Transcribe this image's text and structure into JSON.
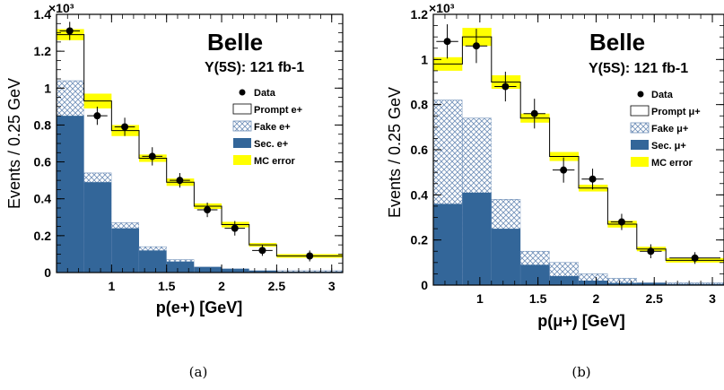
{
  "chart_data": [
    {
      "type": "bar",
      "panel_label": "(a)",
      "title": "Belle",
      "subtitle": "Υ(5S): 121 fb-1",
      "xlabel": "p(e+) [GeV]",
      "ylabel": "Events / 0.25 GeV",
      "exponent_label": "×10³",
      "xlim": [
        0.5,
        3.1
      ],
      "ylim": [
        0,
        1.4
      ],
      "x_ticks": [
        "1",
        "1.5",
        "2",
        "2.5",
        "3"
      ],
      "y_ticks": [
        "0",
        "0.2",
        "0.4",
        "0.6",
        "0.8",
        "1",
        "1.2",
        "1.4"
      ],
      "bin_edges": [
        0.5,
        0.75,
        1.0,
        1.25,
        1.5,
        1.75,
        2.0,
        2.25,
        2.5,
        3.1
      ],
      "series": [
        {
          "name": "Data",
          "x": [
            0.62,
            0.87,
            1.12,
            1.37,
            1.62,
            1.87,
            2.12,
            2.37,
            2.8
          ],
          "values": [
            1.31,
            0.85,
            0.79,
            0.63,
            0.5,
            0.34,
            0.24,
            0.12,
            0.09
          ],
          "errors": [
            0.03,
            0.03,
            0.03,
            0.03,
            0.02,
            0.02,
            0.02,
            0.01,
            0.01
          ]
        },
        {
          "name": "Prompt e+",
          "values": [
            1.29,
            0.93,
            0.77,
            0.62,
            0.49,
            0.36,
            0.26,
            0.15,
            0.09
          ]
        },
        {
          "name": "Fake e+",
          "values": [
            1.04,
            0.54,
            0.27,
            0.14,
            0.07,
            0.03,
            0.02,
            0.01,
            0.01
          ]
        },
        {
          "name": "Sec. e+",
          "values": [
            0.85,
            0.49,
            0.24,
            0.12,
            0.06,
            0.03,
            0.02,
            0.01,
            0.005
          ]
        },
        {
          "name": "MC error",
          "values": [
            0.03,
            0.04,
            0.03,
            0.02,
            0.02,
            0.015,
            0.015,
            0.01,
            0.01
          ]
        }
      ]
    },
    {
      "type": "bar",
      "panel_label": "(b)",
      "title": "Belle",
      "subtitle": "Υ(5S): 121 fb-1",
      "xlabel": "p(μ+) [GeV]",
      "ylabel": "Events / 0.25 GeV",
      "exponent_label": "×10³",
      "xlim": [
        0.6,
        3.1
      ],
      "ylim": [
        0,
        1.2
      ],
      "x_ticks": [
        "1",
        "1.5",
        "2",
        "2.5",
        "3"
      ],
      "y_ticks": [
        "0",
        "0.2",
        "0.4",
        "0.6",
        "0.8",
        "1",
        "1.2"
      ],
      "bin_edges": [
        0.6,
        0.85,
        1.1,
        1.35,
        1.6,
        1.85,
        2.1,
        2.35,
        2.6,
        3.1
      ],
      "series": [
        {
          "name": "Data",
          "x": [
            0.72,
            0.97,
            1.22,
            1.47,
            1.72,
            1.97,
            2.22,
            2.47,
            2.85
          ],
          "values": [
            1.08,
            1.06,
            0.88,
            0.76,
            0.51,
            0.47,
            0.28,
            0.15,
            0.12
          ],
          "errors": [
            0.06,
            0.06,
            0.05,
            0.05,
            0.04,
            0.03,
            0.02,
            0.015,
            0.01
          ]
        },
        {
          "name": "Prompt μ+",
          "values": [
            0.98,
            1.1,
            0.9,
            0.74,
            0.57,
            0.43,
            0.27,
            0.16,
            0.11
          ]
        },
        {
          "name": "Fake μ+",
          "values": [
            0.82,
            0.74,
            0.38,
            0.15,
            0.1,
            0.05,
            0.03,
            0.01,
            0.01
          ]
        },
        {
          "name": "Sec. μ+",
          "values": [
            0.36,
            0.41,
            0.25,
            0.09,
            0.04,
            0.02,
            0.01,
            0.01,
            0.005
          ]
        },
        {
          "name": "MC error",
          "values": [
            0.03,
            0.04,
            0.03,
            0.02,
            0.02,
            0.015,
            0.015,
            0.01,
            0.01
          ]
        }
      ]
    }
  ],
  "colors": {
    "sec_fill": "#336699",
    "fake_hatch": "#6f8fb8",
    "mc_error": "#ffff00",
    "prompt_line": "#000000"
  }
}
